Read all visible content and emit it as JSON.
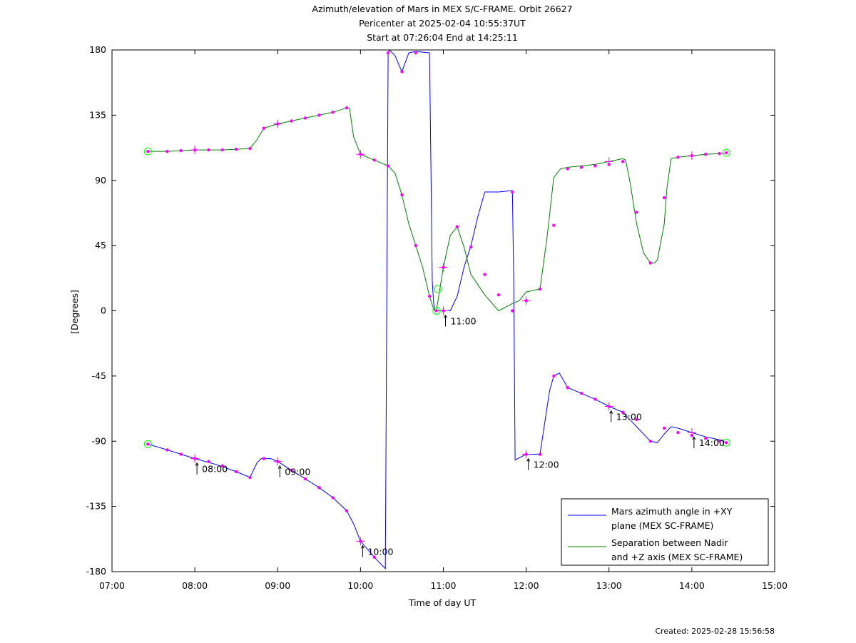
{
  "chart_data": {
    "type": "line",
    "title_lines": [
      "Azimuth/elevation of Mars in MEX S/C-FRAME.  Orbit 26627",
      "Pericenter at 2025-02-04 10:55:37UT",
      "Start at 07:26:04 End at 14:25:11"
    ],
    "xlabel": "Time of day UT",
    "ylabel": "[Degrees]",
    "xlim": [
      "07:00",
      "15:00"
    ],
    "ylim": [
      -180,
      180
    ],
    "x_ticks": [
      "07:00",
      "08:00",
      "09:00",
      "10:00",
      "11:00",
      "12:00",
      "13:00",
      "14:00",
      "15:00"
    ],
    "y_ticks": [
      "180",
      "135",
      "90",
      "45",
      "0",
      "-45",
      "-90",
      "-135",
      "-180"
    ],
    "legend_position": "bottom-right",
    "grid": false,
    "series": [
      {
        "name": "Mars azimuth angle in +XY plane (MEX SC-FRAME)",
        "legend_lines": [
          "Mars azimuth angle in +XY",
          "plane (MEX SC-FRAME)"
        ],
        "color": "#0000ff",
        "x": [
          "07:26",
          "07:40",
          "07:50",
          "08:00",
          "08:15",
          "08:30",
          "08:40",
          "08:45",
          "08:48",
          "08:55",
          "09:00",
          "09:10",
          "09:20",
          "09:30",
          "09:40",
          "09:50",
          "09:55",
          "10:00",
          "10:10",
          "10:18",
          "10:20",
          "10:21",
          "10:25",
          "10:30",
          "10:35",
          "10:40",
          "10:50",
          "10:51",
          "10:52",
          "10:53",
          "10:54",
          "10:55",
          "11:00",
          "11:05",
          "11:10",
          "11:15",
          "11:20",
          "11:25",
          "11:30",
          "11:40",
          "11:50",
          "11:51",
          "11:52",
          "12:00",
          "12:10",
          "12:13",
          "12:17",
          "12:20",
          "12:24",
          "12:30",
          "12:40",
          "12:50",
          "13:00",
          "13:10",
          "13:15",
          "13:20",
          "13:30",
          "13:35",
          "13:40",
          "13:45",
          "13:50",
          "14:00",
          "14:10",
          "14:20",
          "14:25"
        ],
        "y": [
          -92,
          -96,
          -99,
          -102,
          -106,
          -111,
          -115,
          -105,
          -102,
          -102,
          -104,
          -110,
          -116,
          -122,
          -129,
          -138,
          -147,
          -159,
          -170,
          -178,
          178,
          180,
          176,
          165,
          178,
          179,
          178,
          100,
          20,
          5,
          0,
          0,
          0,
          0,
          10,
          30,
          45,
          65,
          82,
          82,
          83,
          20,
          -103,
          -99,
          -99,
          -80,
          -55,
          -45,
          -43,
          -53,
          -57,
          -61,
          -66,
          -70,
          -75,
          -80,
          -90,
          -91,
          -85,
          -80,
          -81,
          -84,
          -87,
          -89,
          -91
        ],
        "marker_x": [
          "07:26",
          "07:40",
          "07:50",
          "08:00",
          "08:10",
          "08:20",
          "08:30",
          "08:40",
          "08:50",
          "09:00",
          "09:10",
          "09:20",
          "09:30",
          "09:40",
          "09:50",
          "10:00",
          "10:10",
          "10:20",
          "10:30",
          "10:40",
          "11:00",
          "11:50",
          "12:00",
          "12:10",
          "12:20",
          "12:30",
          "12:40",
          "12:50",
          "13:00",
          "13:10",
          "13:20",
          "13:30",
          "13:40",
          "13:50",
          "14:00",
          "14:10",
          "14:20",
          "14:25"
        ],
        "marker_y": [
          -92,
          -96,
          -99,
          -102,
          -104,
          -107,
          -111,
          -115,
          -102,
          -104,
          -110,
          -116,
          -122,
          -129,
          -138,
          -159,
          -170,
          178,
          165,
          178,
          0,
          82,
          -99,
          -99,
          -45,
          -53,
          -57,
          -61,
          -66,
          -70,
          -75,
          -90,
          -81,
          -84,
          -86,
          -88,
          -90,
          -91
        ],
        "start_x": "07:26",
        "start_y": -92,
        "end_x": "14:25",
        "end_y": -91
      },
      {
        "name": "Separation between Nadir and +Z axis (MEX SC-FRAME)",
        "legend_lines": [
          "Separation between Nadir",
          "and +Z axis (MEX SC-FRAME)"
        ],
        "color": "#008000",
        "x": [
          "07:26",
          "07:40",
          "07:50",
          "08:00",
          "08:10",
          "08:20",
          "08:30",
          "08:40",
          "08:45",
          "08:50",
          "09:00",
          "09:10",
          "09:20",
          "09:30",
          "09:40",
          "09:50",
          "09:52",
          "09:55",
          "10:00",
          "10:10",
          "10:20",
          "10:25",
          "10:30",
          "10:35",
          "10:40",
          "10:45",
          "10:50",
          "10:53",
          "10:55",
          "11:00",
          "11:05",
          "11:10",
          "11:15",
          "11:20",
          "11:30",
          "11:40",
          "11:50",
          "11:55",
          "12:00",
          "12:10",
          "12:15",
          "12:20",
          "12:25",
          "12:30",
          "12:40",
          "12:50",
          "13:00",
          "13:10",
          "13:12",
          "13:15",
          "13:20",
          "13:25",
          "13:30",
          "13:33",
          "13:35",
          "13:40",
          "13:42",
          "13:45",
          "13:50",
          "14:00",
          "14:10",
          "14:20",
          "14:25"
        ],
        "y": [
          110,
          110,
          110.5,
          111,
          111,
          111,
          111.5,
          112,
          118,
          126,
          129,
          131,
          133,
          135,
          137,
          140,
          140,
          120,
          108,
          104,
          100,
          95,
          80,
          60,
          45,
          30,
          10,
          1,
          0,
          30,
          52,
          58,
          44,
          25,
          11,
          0,
          5,
          7,
          13,
          15,
          50,
          92,
          98,
          99,
          100,
          101,
          103,
          105,
          104,
          90,
          60,
          40,
          33,
          33,
          35,
          60,
          85,
          105,
          106,
          107,
          108,
          108.5,
          109
        ],
        "marker_x": [
          "07:26",
          "07:40",
          "07:50",
          "08:00",
          "08:10",
          "08:20",
          "08:30",
          "08:40",
          "08:50",
          "09:00",
          "09:10",
          "09:20",
          "09:30",
          "09:40",
          "09:50",
          "10:00",
          "10:10",
          "10:20",
          "10:30",
          "10:40",
          "10:50",
          "10:55",
          "11:00",
          "11:10",
          "11:20",
          "11:30",
          "11:40",
          "11:50",
          "12:00",
          "12:10",
          "12:20",
          "12:30",
          "12:40",
          "12:50",
          "13:00",
          "13:10",
          "13:20",
          "13:30",
          "13:40",
          "13:50",
          "14:00",
          "14:10",
          "14:20",
          "14:25"
        ],
        "marker_y": [
          110,
          110,
          110.5,
          111,
          111,
          111,
          111.5,
          112,
          126,
          129,
          131,
          133,
          135,
          137,
          140,
          108,
          104,
          100,
          80,
          45,
          10,
          0,
          30,
          58,
          44,
          25,
          11,
          0,
          7,
          15,
          59,
          98,
          99,
          100,
          101,
          103,
          68,
          33,
          78,
          106,
          107,
          108,
          108.5,
          109
        ],
        "start_x": "07:26",
        "start_y": 110,
        "end_x": "14:25",
        "end_y": 109
      }
    ],
    "annotations": [
      {
        "label": "08:00",
        "series": 0,
        "x": "08:00",
        "y": -102
      },
      {
        "label": "09:00",
        "series": 0,
        "x": "09:00",
        "y": -104
      },
      {
        "label": "10:00",
        "series": 0,
        "x": "10:00",
        "y": -159
      },
      {
        "label": "11:00",
        "series": 0,
        "x": "11:00",
        "y": 0
      },
      {
        "label": "12:00",
        "series": 0,
        "x": "12:00",
        "y": -99
      },
      {
        "label": "13:00",
        "series": 0,
        "x": "13:00",
        "y": -66
      },
      {
        "label": "14:00",
        "series": 0,
        "x": "14:00",
        "y": -84
      }
    ],
    "cross_markers": [
      {
        "series": 0,
        "x": "08:00",
        "y": -102
      },
      {
        "series": 0,
        "x": "09:00",
        "y": -104
      },
      {
        "series": 0,
        "x": "10:00",
        "y": -159
      },
      {
        "series": 0,
        "x": "11:00",
        "y": 0
      },
      {
        "series": 0,
        "x": "12:00",
        "y": -99
      },
      {
        "series": 0,
        "x": "13:00",
        "y": -66
      },
      {
        "series": 0,
        "x": "14:00",
        "y": -84
      },
      {
        "series": 1,
        "x": "08:00",
        "y": 111
      },
      {
        "series": 1,
        "x": "09:00",
        "y": 129
      },
      {
        "series": 1,
        "x": "10:00",
        "y": 108
      },
      {
        "series": 1,
        "x": "11:00",
        "y": 30
      },
      {
        "series": 1,
        "x": "12:00",
        "y": 7
      },
      {
        "series": 1,
        "x": "13:00",
        "y": 103
      },
      {
        "series": 1,
        "x": "14:00",
        "y": 107
      }
    ],
    "pericenter_markers": [
      {
        "x": "10:55",
        "y": 0
      },
      {
        "x": "10:56",
        "y": 15
      }
    ]
  },
  "footer": {
    "created": "Created: 2025-02-28 15:56:58"
  }
}
